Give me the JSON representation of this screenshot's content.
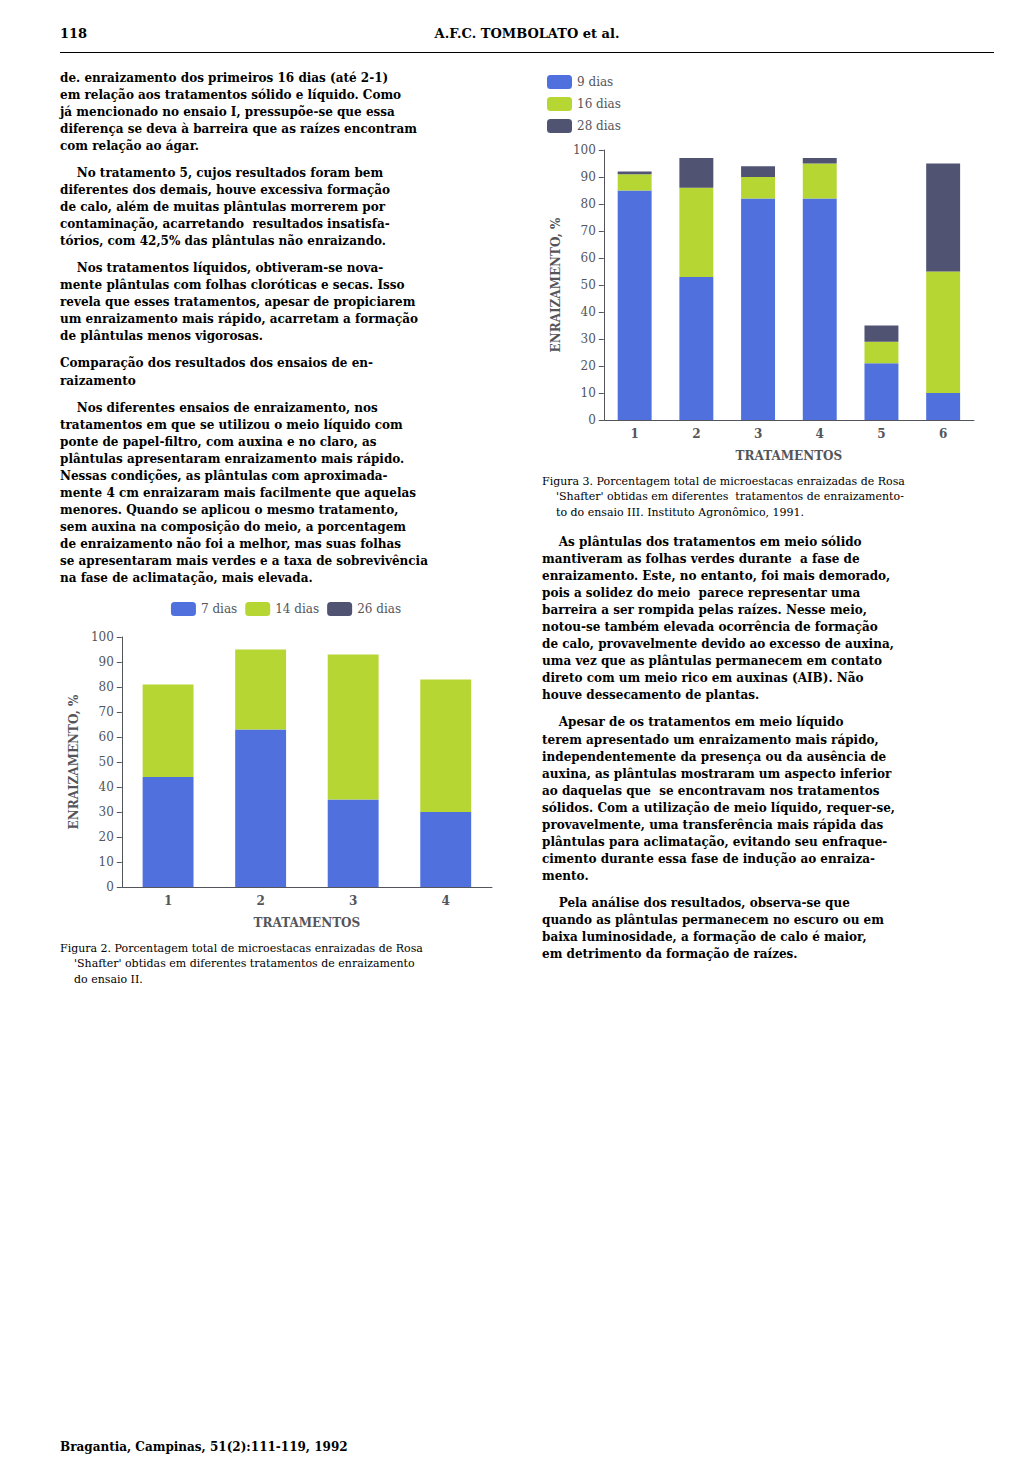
{
  "annotations": {
    "header": [
      "118",
      "A.F.C. TOMBOLATO et al."
    ],
    "left_column": [
      "de. enraizamento dos primeiros 16 dias (até 2-1)\nem relação aos tratamentos sólido e líquido. Como\njá mencionado no ensaio I, pressupõe-se que essa\ndiferença se deva à barreira que as raízes encontram\ncom relação ao ágar.",
      "    No tratamento 5, cujos resultados foram bem\ndiferentes dos demais, houve excessiva formação\nde calo, além de muitas plântulas morrerem por\ncontaminação, acarretando  resultados insatisfa-\ntórios, com 42,5% das plântulas não enraizando.",
      "    Nos tratamentos líquidos, obtiveram-se nova-\nmente plântulas com folhas cloróticas e secas. Isso\nrevela que esses tratamentos, apesar de propiciarem\num enraizamento mais rápido, acarretam a formação\nde plântulas menos vigorosas.",
      "Comparação dos resultados dos ensaios de en-\nraizamento",
      "    Nos diferentes ensaios de enraizamento, nos\ntratamentos em que se utilizou o meio líquido com\nponte de papel-filtro, com auxina e no claro, as\nplântulas apresentaram enraizamento mais rápido.\nNessas condições, as plântulas com aproximada-\nmente 4 cm enraizaram mais facilmente que aquelas\nmenores. Quando se aplicou o mesmo tratamento,\nsem auxina na composição do meio, a porcentagem\nde enraizamento não foi a melhor, mas suas folhas\nse apresentaram mais verdes e a taxa de sobrevivência\nna fase de aclimatação, mais elevada."
    ],
    "right_column": [
      "    As plântulas dos tratamentos em meio sólido\nmantiveram as folhas verdes durante  a fase de\nenraizamento. Este, no entanto, foi mais demorado,\npois a solidez do meio  parece representar uma\nbarreira a ser rompida pelas raízes. Nesse meio,\nnotou-se também elevada ocorrência de formação\nde calo, provavelmente devido ao excesso de auxina,\numa vez que as plântulas permanecem em contato\ndireto com um meio rico em auxinas (AIB). Não\nhouve dessecamento de plantas.",
      "    Apesar de os tratamentos em meio líquido\nterem apresentado um enraizamento mais rápido,\nindependentemente da presença ou da ausência de\nauxina, as plântulas mostraram um aspecto inferior\nao daquelas que  se encontravam nos tratamentos\nsólidos. Com a utilização de meio líquido, requer-se,\nprovavelmente, uma transferência mais rápida das\nplântulas para aclimatação, evitando seu enfraque-\ncimento durante essa fase de indução ao enraiza-\nmento.",
      "    Pela análise dos resultados, observa-se que\nquando as plântulas permanecem no escuro ou em\nbaixa luminosidade, a formação de calo é maior,\nem detrimento da formação de raízes."
    ],
    "footer": "Bragantia, Campinas, 51(2):111-119, 1992"
  },
  "chart_data": [
    {
      "type": "bar",
      "title": "Figura 2. Porcentagem total de microestacas enraizadas de Rosa\n    'Shafter' obtidas em diferentes tratamentos de enraizamento\n    do ensaio II.",
      "xlabel": "TRATAMENTOS",
      "ylabel": "ENRAIZAMENTO, %",
      "categories": [
        1,
        2,
        3,
        4
      ],
      "series": [
        {
          "name": "7 dias",
          "values": [
            44,
            63,
            35,
            30
          ]
        },
        {
          "name": "14 dias",
          "values": [
            37,
            32,
            58,
            53
          ]
        },
        {
          "name": "26 dias",
          "values": [
            0,
            0,
            0,
            0
          ]
        }
      ],
      "ylim": [
        0,
        100
      ],
      "yticks": [
        0,
        10,
        20,
        30,
        40,
        50,
        60,
        70,
        80,
        90,
        100
      ],
      "stacked": true,
      "grid": false,
      "legend": "top"
    },
    {
      "type": "bar",
      "title": "Figura 3. Porcentagem total de microestacas enraizadas de Rosa\n    'Shafter' obtidas em diferentes  tratamentos de enraizamento-\n    to do ensaio III. Instituto Agronômico, 1991.",
      "xlabel": "TRATAMENTOS",
      "ylabel": "ENRAIZAMENTO, %",
      "categories": [
        1,
        2,
        3,
        4,
        5,
        6
      ],
      "series": [
        {
          "name": "9 dias",
          "values": [
            85,
            53,
            82,
            82,
            21,
            10
          ]
        },
        {
          "name": "16 dias",
          "values": [
            6,
            33,
            8,
            13,
            8,
            45
          ]
        },
        {
          "name": "28 dias",
          "values": [
            1,
            11,
            4,
            2,
            6,
            40
          ]
        }
      ],
      "ylim": [
        0,
        100
      ],
      "yticks": [
        0,
        10,
        20,
        30,
        40,
        50,
        60,
        70,
        80,
        90,
        100
      ],
      "stacked": true,
      "grid": false,
      "legend": "top-left"
    }
  ]
}
